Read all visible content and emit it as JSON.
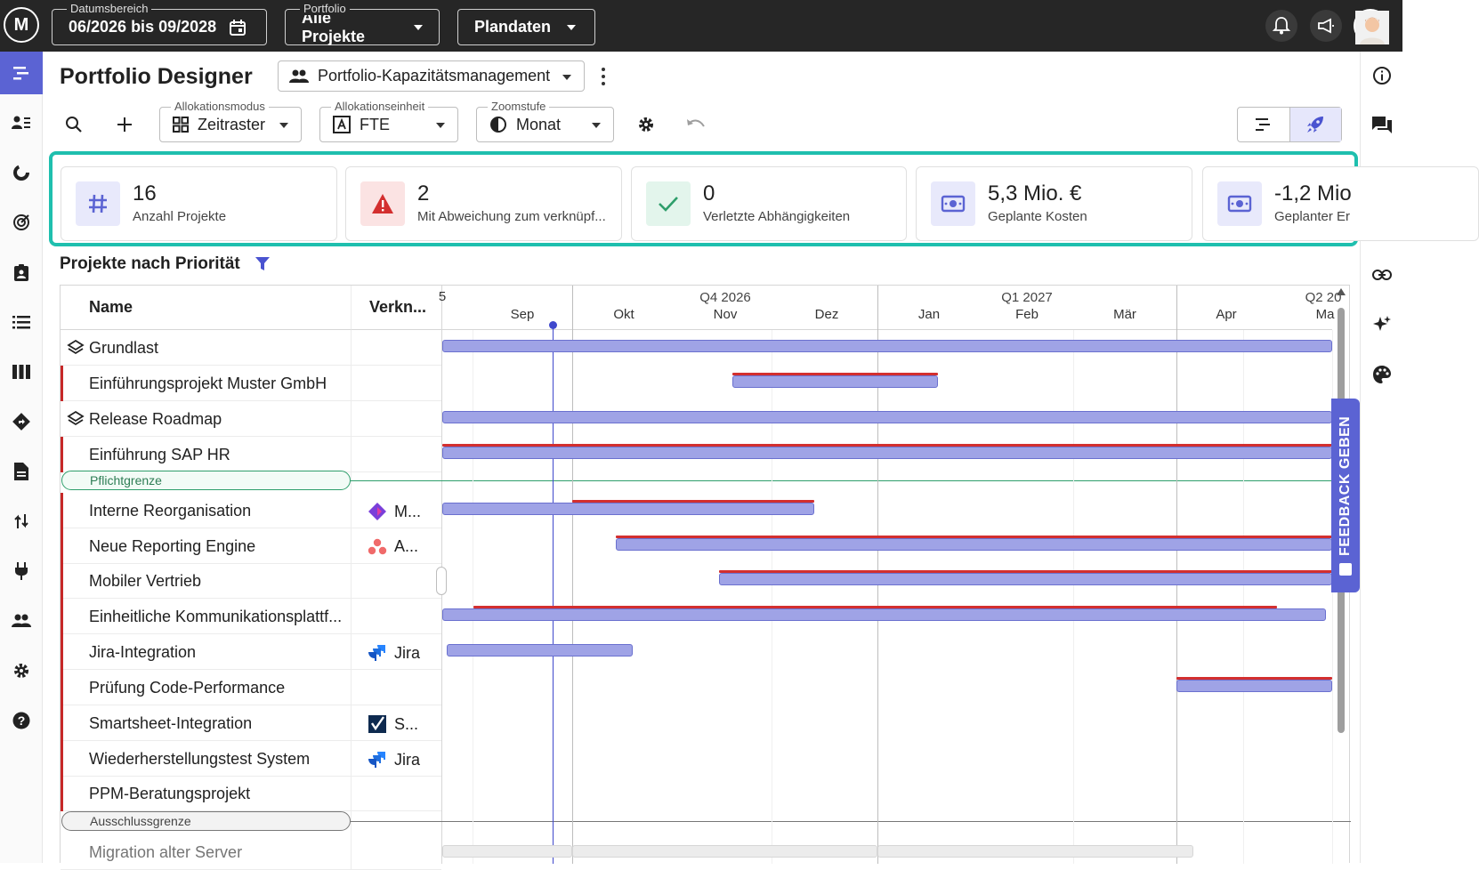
{
  "topbar": {
    "date_range": {
      "label": "Datumsbereich",
      "value": "06/2026 bis 09/2028"
    },
    "portfolio": {
      "label": "Portfolio",
      "value": "Alle Projekte"
    },
    "data_mode": {
      "value": "Plandaten"
    }
  },
  "header": {
    "title": "Portfolio Designer",
    "view": "Portfolio-Kapazitätsmanagement"
  },
  "toolbar": {
    "allocation_mode": {
      "label": "Allokationsmodus",
      "value": "Zeitraster"
    },
    "allocation_unit": {
      "label": "Allokationseinheit",
      "value": "FTE"
    },
    "zoom": {
      "label": "Zoomstufe",
      "value": "Monat"
    }
  },
  "kpis": [
    {
      "value": "16",
      "text": "Anzahl Projekte",
      "icon": "hash-icon",
      "color": "#5b63d3"
    },
    {
      "value": "2",
      "text": "Mit Abweichung zum verknüpf...",
      "icon": "warning-icon",
      "color": "#d32f2f"
    },
    {
      "value": "0",
      "text": "Verletzte Abhängigkeiten",
      "icon": "check-icon",
      "color": "#2e9e6b"
    },
    {
      "value": "5,3 Mio. €",
      "text": "Geplante Kosten",
      "icon": "money-icon",
      "color": "#5b63d3"
    },
    {
      "value": "-1,2 Mio",
      "text": "Geplanter Er",
      "icon": "money-icon",
      "color": "#5b63d3"
    }
  ],
  "section": {
    "title": "Projekte nach Priorität"
  },
  "columns": {
    "name": "Name",
    "linked": "Verkn..."
  },
  "timeline": {
    "quarters": [
      "Q4 2026",
      "Q1 2027",
      "Q2 20"
    ],
    "months": [
      "Sep",
      "Okt",
      "Nov",
      "Dez",
      "Jan",
      "Feb",
      "Mär",
      "Apr",
      "Ma"
    ],
    "partial_month": "5"
  },
  "rows": [
    {
      "name": "Grundlast",
      "link": ""
    },
    {
      "name": "Einführungsprojekt Muster GmbH",
      "link": ""
    },
    {
      "name": "Release Roadmap",
      "link": ""
    },
    {
      "name": "Einführung SAP HR",
      "link": ""
    },
    {
      "name": "Interne Reorganisation",
      "link": "M..."
    },
    {
      "name": "Neue Reporting Engine",
      "link": "A..."
    },
    {
      "name": "Mobiler Vertrieb",
      "link": ""
    },
    {
      "name": "Einheitliche Kommunikationsplattf...",
      "link": ""
    },
    {
      "name": "Jira-Integration",
      "link": "Jira"
    },
    {
      "name": "Prüfung Code-Performance",
      "link": ""
    },
    {
      "name": "Smartsheet-Integration",
      "link": "S..."
    },
    {
      "name": "Wiederherstellungstest System",
      "link": "Jira"
    },
    {
      "name": "PPM-Beratungsprojekt",
      "link": ""
    },
    {
      "name": "Migration alter Server",
      "link": ""
    }
  ],
  "limits": {
    "mandatory": "Pflichtgrenze",
    "exclusion": "Ausschlussgrenze"
  },
  "feedback": "FEEDBACK GEBEN",
  "colors": {
    "accent": "#5b63d3",
    "highlight": "#1fbfae",
    "deviation": "#d32f2f",
    "bar": "#9fa3e6"
  }
}
